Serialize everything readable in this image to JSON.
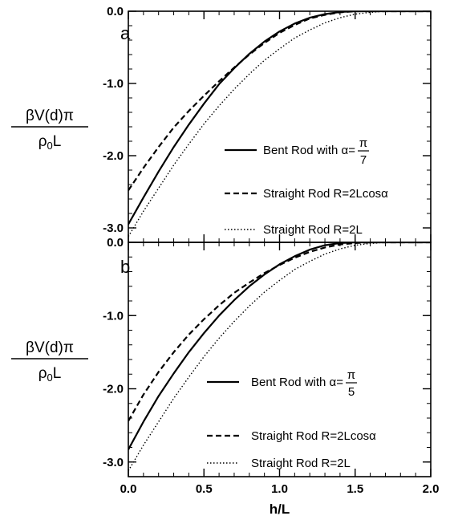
{
  "chart_data": [
    {
      "type": "line",
      "panel_label": "a",
      "ylabel": {
        "main": "βV(d)π",
        "den_prefix": "ρ",
        "den_sub": "0",
        "den_suffix": "L"
      },
      "xlim": [
        0,
        2
      ],
      "ylim": [
        -3.2,
        0
      ],
      "xticks": [
        0.0,
        0.5,
        1.0,
        1.5,
        2.0
      ],
      "yticks": [
        "0.0",
        "-1.0",
        "-2.0",
        "-3.0"
      ],
      "ytick_values": [
        0,
        -1,
        -2,
        -3
      ],
      "legend_position": "right",
      "series": [
        {
          "name": "Bent Rod with α=",
          "frac_num": "π",
          "frac_den": "7",
          "style": "solid",
          "x": [
            0,
            0.1,
            0.2,
            0.3,
            0.4,
            0.5,
            0.6,
            0.7,
            0.8,
            0.9,
            1.0,
            1.1,
            1.2,
            1.3,
            1.4,
            1.5,
            1.6,
            1.7,
            1.8,
            1.9,
            2.0
          ],
          "y": [
            -2.95,
            -2.58,
            -2.22,
            -1.88,
            -1.57,
            -1.28,
            -1.01,
            -0.79,
            -0.59,
            -0.42,
            -0.28,
            -0.17,
            -0.09,
            -0.04,
            -0.01,
            0,
            0,
            0,
            0,
            0,
            0
          ]
        },
        {
          "name": "Straight Rod R=2Lcosα",
          "style": "dashed",
          "x": [
            0,
            0.1,
            0.2,
            0.3,
            0.4,
            0.5,
            0.6,
            0.7,
            0.8,
            0.9,
            1.0,
            1.1,
            1.2,
            1.3,
            1.4,
            1.5,
            1.6,
            1.7,
            1.8,
            1.9,
            2.0
          ],
          "y": [
            -2.48,
            -2.17,
            -1.88,
            -1.61,
            -1.38,
            -1.17,
            -0.97,
            -0.78,
            -0.6,
            -0.44,
            -0.3,
            -0.19,
            -0.1,
            -0.05,
            -0.015,
            0,
            0,
            0,
            0,
            0,
            0
          ]
        },
        {
          "name": "Straight Rod R=2L",
          "style": "dotted",
          "x": [
            0,
            0.1,
            0.2,
            0.3,
            0.4,
            0.5,
            0.6,
            0.7,
            0.8,
            0.9,
            1.0,
            1.1,
            1.2,
            1.3,
            1.4,
            1.5,
            1.6,
            1.7,
            1.8,
            1.9,
            2.0
          ],
          "y": [
            -3.12,
            -2.77,
            -2.45,
            -2.13,
            -1.84,
            -1.56,
            -1.31,
            -1.08,
            -0.87,
            -0.68,
            -0.52,
            -0.37,
            -0.26,
            -0.16,
            -0.09,
            -0.04,
            -0.015,
            0,
            0,
            0,
            0
          ]
        }
      ]
    },
    {
      "type": "line",
      "panel_label": "b",
      "ylabel": {
        "main": "βV(d)π",
        "den_prefix": "ρ",
        "den_sub": "0",
        "den_suffix": "L"
      },
      "xlabel": "h/L",
      "xlim": [
        0,
        2
      ],
      "ylim": [
        -3.2,
        0
      ],
      "xticks": [
        0.0,
        0.5,
        1.0,
        1.5,
        2.0
      ],
      "xtick_labels": [
        "0.0",
        "0.5",
        "1.0",
        "1.5",
        "2.0"
      ],
      "yticks": [
        "0.0",
        "-1.0",
        "-2.0",
        "-3.0"
      ],
      "ytick_values": [
        0,
        -1,
        -2,
        -3
      ],
      "legend_position": "lower-right",
      "series": [
        {
          "name": "Bent Rod with α=",
          "frac_num": "π",
          "frac_den": "5",
          "style": "solid",
          "x": [
            0,
            0.1,
            0.2,
            0.3,
            0.4,
            0.5,
            0.6,
            0.7,
            0.8,
            0.9,
            1.0,
            1.1,
            1.2,
            1.3,
            1.4,
            1.5,
            1.6,
            1.7,
            1.8,
            1.9,
            2.0
          ],
          "y": [
            -2.83,
            -2.45,
            -2.1,
            -1.79,
            -1.5,
            -1.24,
            -1.0,
            -0.79,
            -0.6,
            -0.44,
            -0.3,
            -0.19,
            -0.1,
            -0.04,
            -0.01,
            0,
            0,
            0,
            0,
            0,
            0
          ]
        },
        {
          "name": "Straight Rod R=2Lcosα",
          "style": "dashed",
          "x": [
            0,
            0.1,
            0.2,
            0.3,
            0.4,
            0.5,
            0.6,
            0.7,
            0.8,
            0.9,
            1.0,
            1.1,
            1.2,
            1.3,
            1.4,
            1.5,
            1.6,
            1.7,
            1.8,
            1.9,
            2.0
          ],
          "y": [
            -2.44,
            -2.08,
            -1.77,
            -1.5,
            -1.26,
            -1.05,
            -0.86,
            -0.69,
            -0.55,
            -0.42,
            -0.31,
            -0.21,
            -0.13,
            -0.07,
            -0.03,
            -0.01,
            0,
            0,
            0,
            0,
            0
          ]
        },
        {
          "name": "Straight Rod R=2L",
          "style": "dotted",
          "x": [
            0,
            0.1,
            0.2,
            0.3,
            0.4,
            0.5,
            0.6,
            0.7,
            0.8,
            0.9,
            1.0,
            1.1,
            1.2,
            1.3,
            1.4,
            1.5,
            1.6,
            1.7,
            1.8,
            1.9,
            2.0
          ],
          "y": [
            -3.12,
            -2.77,
            -2.45,
            -2.13,
            -1.84,
            -1.56,
            -1.31,
            -1.08,
            -0.87,
            -0.68,
            -0.52,
            -0.37,
            -0.26,
            -0.16,
            -0.09,
            -0.04,
            -0.015,
            0,
            0,
            0,
            0
          ]
        }
      ]
    }
  ]
}
